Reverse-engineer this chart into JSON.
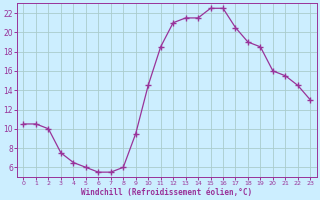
{
  "x": [
    0,
    1,
    2,
    3,
    4,
    5,
    6,
    7,
    8,
    9,
    10,
    11,
    12,
    13,
    14,
    15,
    16,
    17,
    18,
    19,
    20,
    21,
    22,
    23
  ],
  "y": [
    10.5,
    10.5,
    10.0,
    7.5,
    6.5,
    6.0,
    5.5,
    5.5,
    6.0,
    9.5,
    14.5,
    18.5,
    21.0,
    21.5,
    21.5,
    22.5,
    22.5,
    20.5,
    19.0,
    18.5,
    16.0,
    15.5,
    14.5,
    13.0
  ],
  "line_color": "#993399",
  "marker": "+",
  "marker_size": 4,
  "bg_color": "#cceeff",
  "grid_color": "#aacccc",
  "xlabel": "Windchill (Refroidissement éolien,°C)",
  "xlabel_color": "#993399",
  "tick_color": "#993399",
  "spine_color": "#993399",
  "xlim": [
    -0.5,
    23.5
  ],
  "ylim": [
    5.0,
    23.0
  ],
  "yticks": [
    6,
    8,
    10,
    12,
    14,
    16,
    18,
    20,
    22
  ],
  "xtick_labels": [
    "0",
    "1",
    "2",
    "3",
    "4",
    "5",
    "6",
    "7",
    "8",
    "9",
    "10",
    "11",
    "12",
    "13",
    "14",
    "15",
    "16",
    "17",
    "18",
    "19",
    "20",
    "21",
    "22",
    "23"
  ]
}
